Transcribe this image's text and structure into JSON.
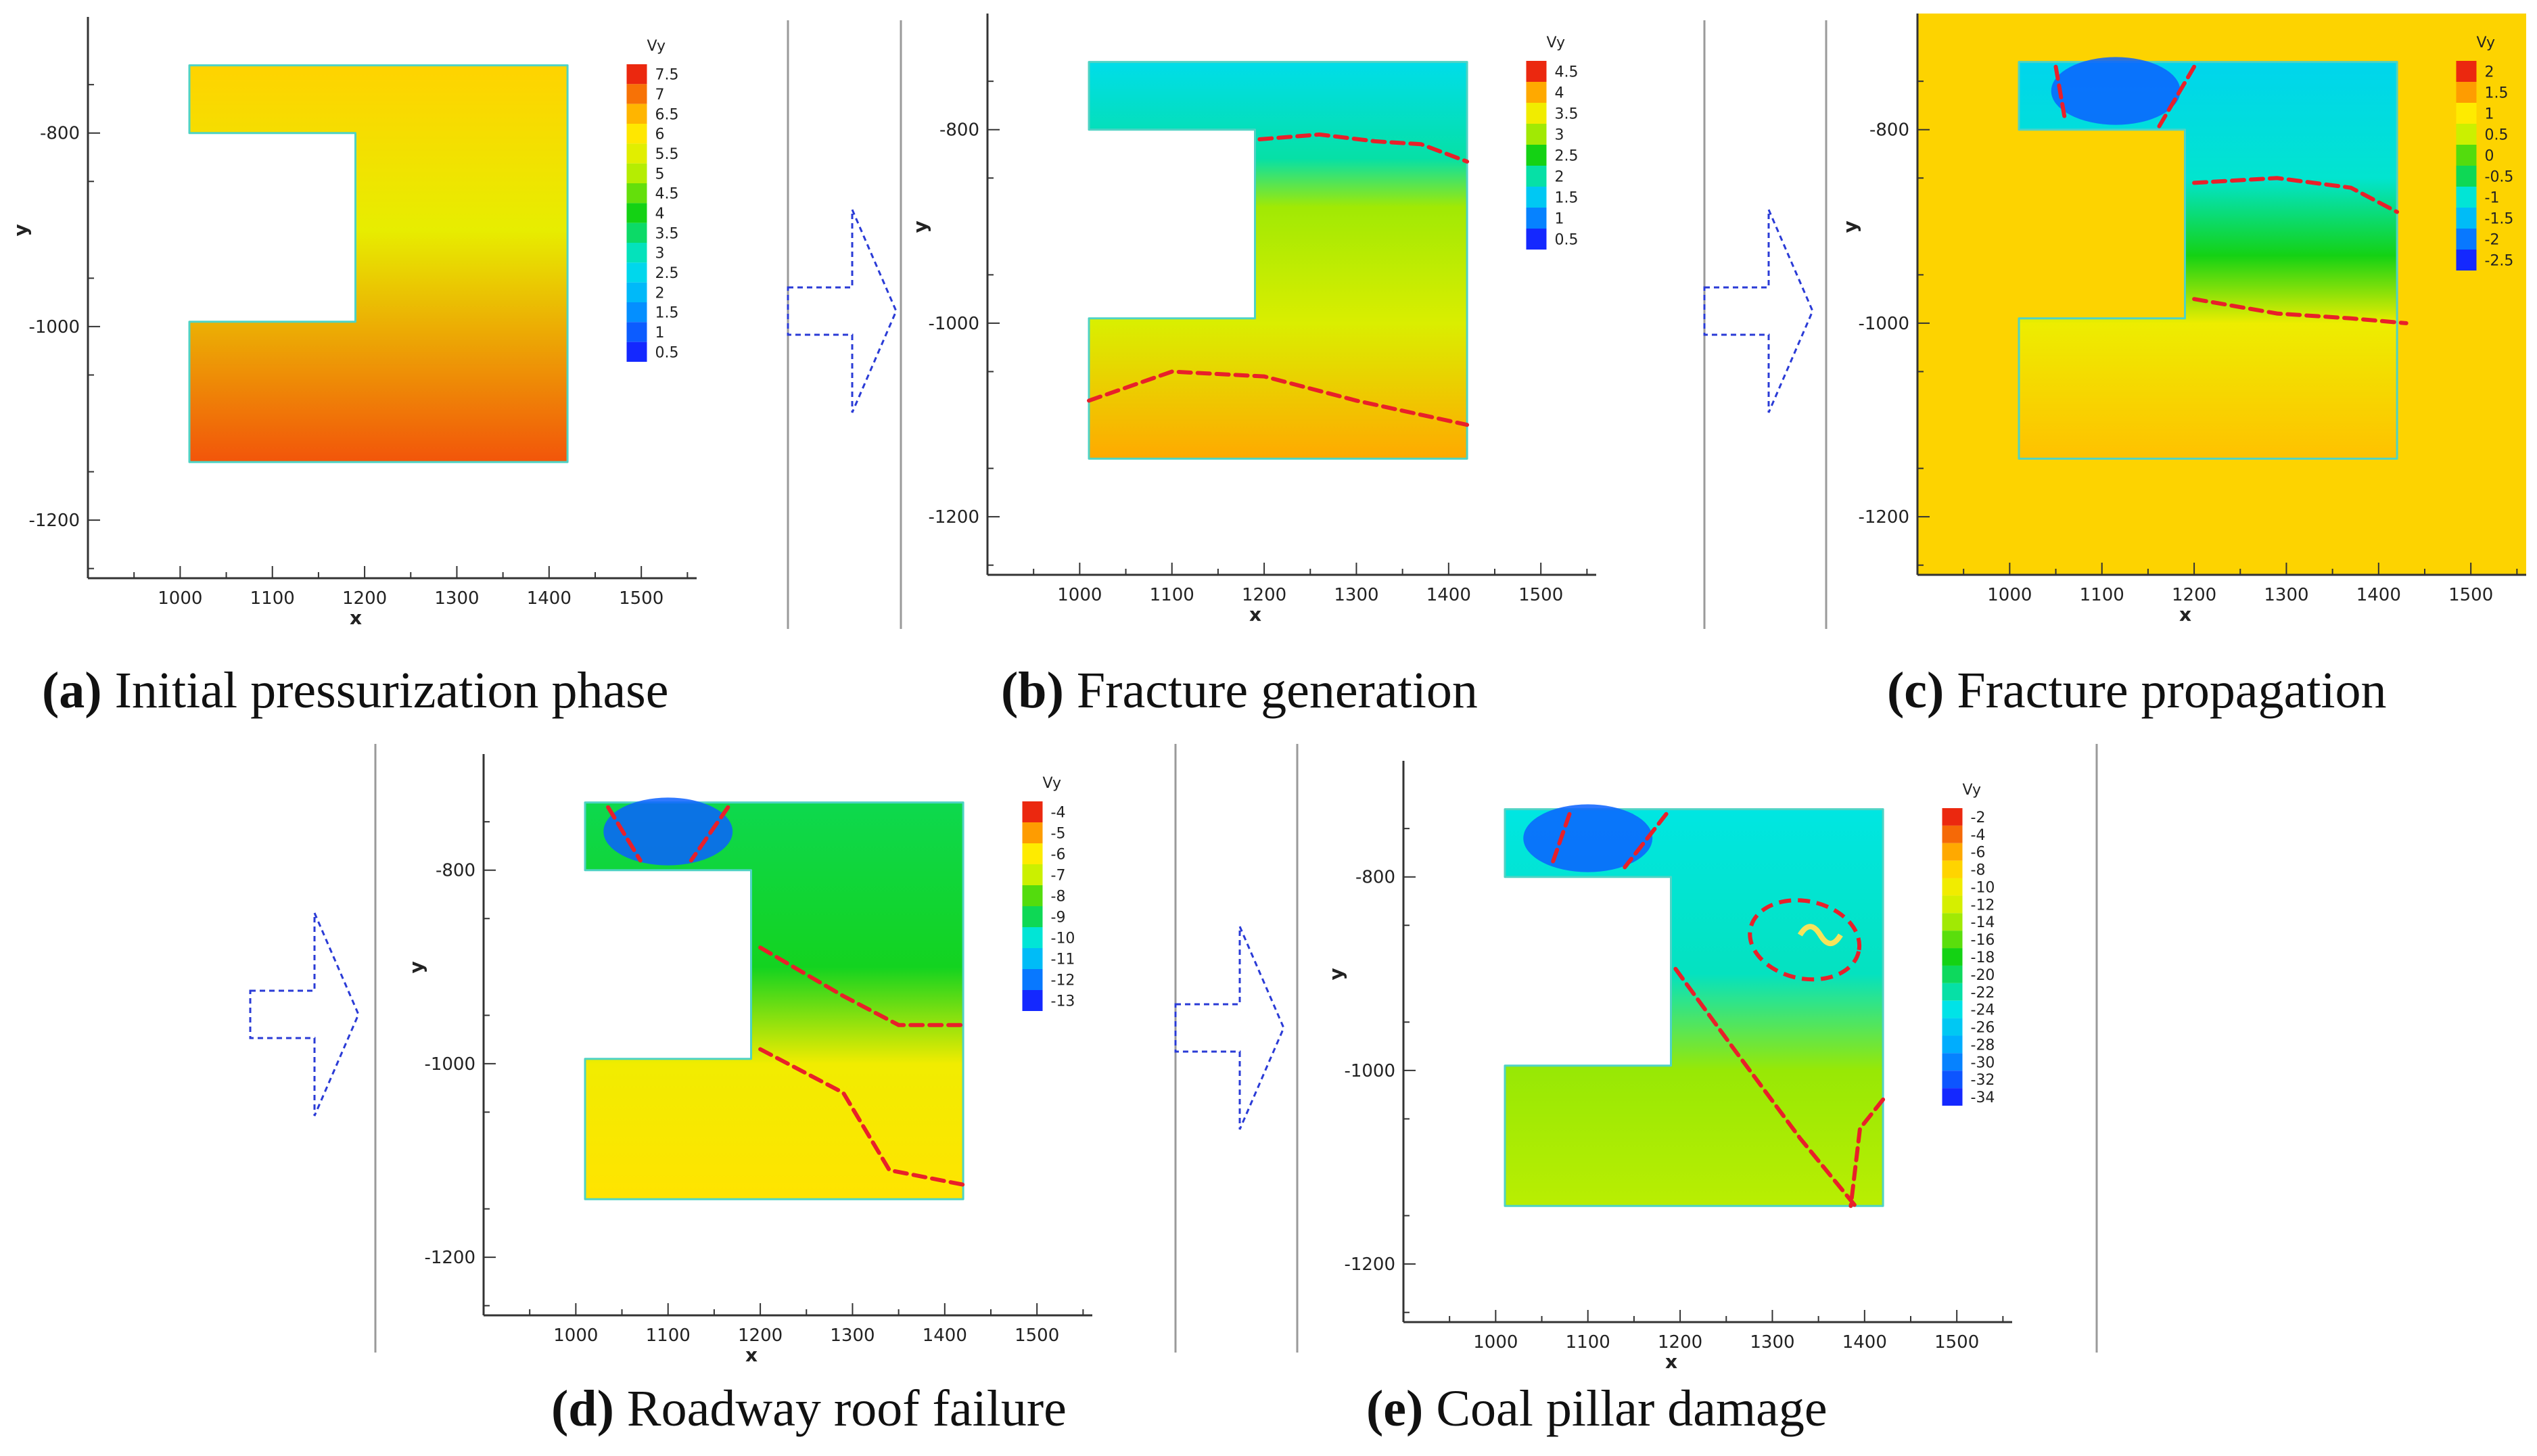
{
  "captions": [
    {
      "letter": "(a)",
      "text": " Initial pressurization phase"
    },
    {
      "letter": "(b)",
      "text": " Fracture generation"
    },
    {
      "letter": "(c)",
      "text": " Fracture propagation"
    },
    {
      "letter": "(d)",
      "text": " Roadway roof failure"
    },
    {
      "letter": "(e)",
      "text": " Coal pillar damage"
    }
  ],
  "colors": {
    "arrow": "#2a3bd6",
    "fracture": "#e8202a",
    "separator": "#9a9a9a",
    "axis": "#333333",
    "yellow_bg": "#fdd300"
  },
  "chart_data": [
    {
      "panel": "a",
      "type": "heatmap",
      "title": "Initial pressurization phase",
      "xlabel": "x",
      "ylabel": "y",
      "xticks": [
        1000,
        1100,
        1200,
        1300,
        1400,
        1500
      ],
      "yticks": [
        -800,
        -1000,
        -1200
      ],
      "xlim": [
        900,
        1560
      ],
      "ylim": [
        -1260,
        -680
      ],
      "legend_title": "Vy",
      "legend_labels": [
        "7.5",
        "7",
        "6.5",
        "6",
        "5.5",
        "5",
        "4.5",
        "4",
        "3.5",
        "3",
        "2.5",
        "2",
        "1.5",
        "1",
        "0.5"
      ],
      "colormap": "rainbow",
      "color_range": [
        0.5,
        7.5
      ],
      "field_gradient": [
        [
          -730,
          6.2
        ],
        [
          -900,
          5.6
        ],
        [
          -1140,
          7.2
        ]
      ]
    },
    {
      "panel": "b",
      "type": "heatmap",
      "title": "Fracture generation",
      "xlabel": "x",
      "ylabel": "y",
      "xticks": [
        1000,
        1100,
        1200,
        1300,
        1400,
        1500
      ],
      "yticks": [
        -800,
        -1000,
        -1200
      ],
      "xlim": [
        900,
        1560
      ],
      "ylim": [
        -1260,
        -680
      ],
      "legend_title": "Vy",
      "legend_labels": [
        "4.5",
        "4",
        "3.5",
        "3",
        "2.5",
        "2",
        "1.5",
        "1",
        "0.5"
      ],
      "colormap": "rainbow",
      "color_range": [
        0.5,
        4.5
      ],
      "field_gradient": [
        [
          -730,
          1.7
        ],
        [
          -830,
          2.0
        ],
        [
          -880,
          3.0
        ],
        [
          -1000,
          3.3
        ],
        [
          -1140,
          4.0
        ]
      ]
    },
    {
      "panel": "c",
      "type": "heatmap",
      "title": "Fracture propagation",
      "xlabel": "x",
      "ylabel": "y",
      "xticks": [
        1000,
        1100,
        1200,
        1300,
        1400,
        1500
      ],
      "yticks": [
        -800,
        -1000,
        -1200
      ],
      "xlim": [
        900,
        1560
      ],
      "ylim": [
        -1260,
        -680
      ],
      "legend_title": "Vy",
      "legend_labels": [
        "2",
        "1.5",
        "1",
        "0.5",
        "0",
        "-0.5",
        "-1",
        "-1.5",
        "-2",
        "-2.5"
      ],
      "colormap": "rainbow",
      "color_range": [
        -2.8,
        2.2
      ],
      "field_gradient": [
        [
          -730,
          -1.4
        ],
        [
          -850,
          -1.1
        ],
        [
          -930,
          -0.3
        ],
        [
          -1000,
          0.9
        ],
        [
          -1140,
          1.4
        ]
      ]
    },
    {
      "panel": "d",
      "type": "heatmap",
      "title": "Roadway roof failure",
      "xlabel": "x",
      "ylabel": "y",
      "xticks": [
        1000,
        1100,
        1200,
        1300,
        1400,
        1500
      ],
      "yticks": [
        -800,
        -1000,
        -1200
      ],
      "xlim": [
        900,
        1560
      ],
      "ylim": [
        -1260,
        -680
      ],
      "legend_title": "Vy",
      "legend_labels": [
        "-4",
        "-5",
        "-6",
        "-7",
        "-8",
        "-9",
        "-10",
        "-11",
        "-12",
        "-13"
      ],
      "colormap": "rainbow",
      "color_range": [
        -13.5,
        -3.5
      ],
      "field_gradient": [
        [
          -730,
          -9.0
        ],
        [
          -900,
          -8.6
        ],
        [
          -1000,
          -6.0
        ],
        [
          -1140,
          -5.6
        ]
      ]
    },
    {
      "panel": "e",
      "type": "heatmap",
      "title": "Coal pillar damage",
      "xlabel": "x",
      "ylabel": "y",
      "xticks": [
        1000,
        1100,
        1200,
        1300,
        1400,
        1500
      ],
      "yticks": [
        -800,
        -1000,
        -1200
      ],
      "xlim": [
        900,
        1560
      ],
      "ylim": [
        -1260,
        -680
      ],
      "legend_title": "Vy",
      "legend_labels": [
        "-2",
        "-4",
        "-6",
        "-8",
        "-10",
        "-12",
        "-14",
        "-16",
        "-18",
        "-20",
        "-22",
        "-24",
        "-26",
        "-28",
        "-30",
        "-32",
        "-34"
      ],
      "colormap": "rainbow",
      "color_range": [
        -35,
        -1
      ],
      "field_gradient": [
        [
          -730,
          -24
        ],
        [
          -900,
          -23
        ],
        [
          -1000,
          -14
        ],
        [
          -1140,
          -13
        ]
      ]
    }
  ]
}
